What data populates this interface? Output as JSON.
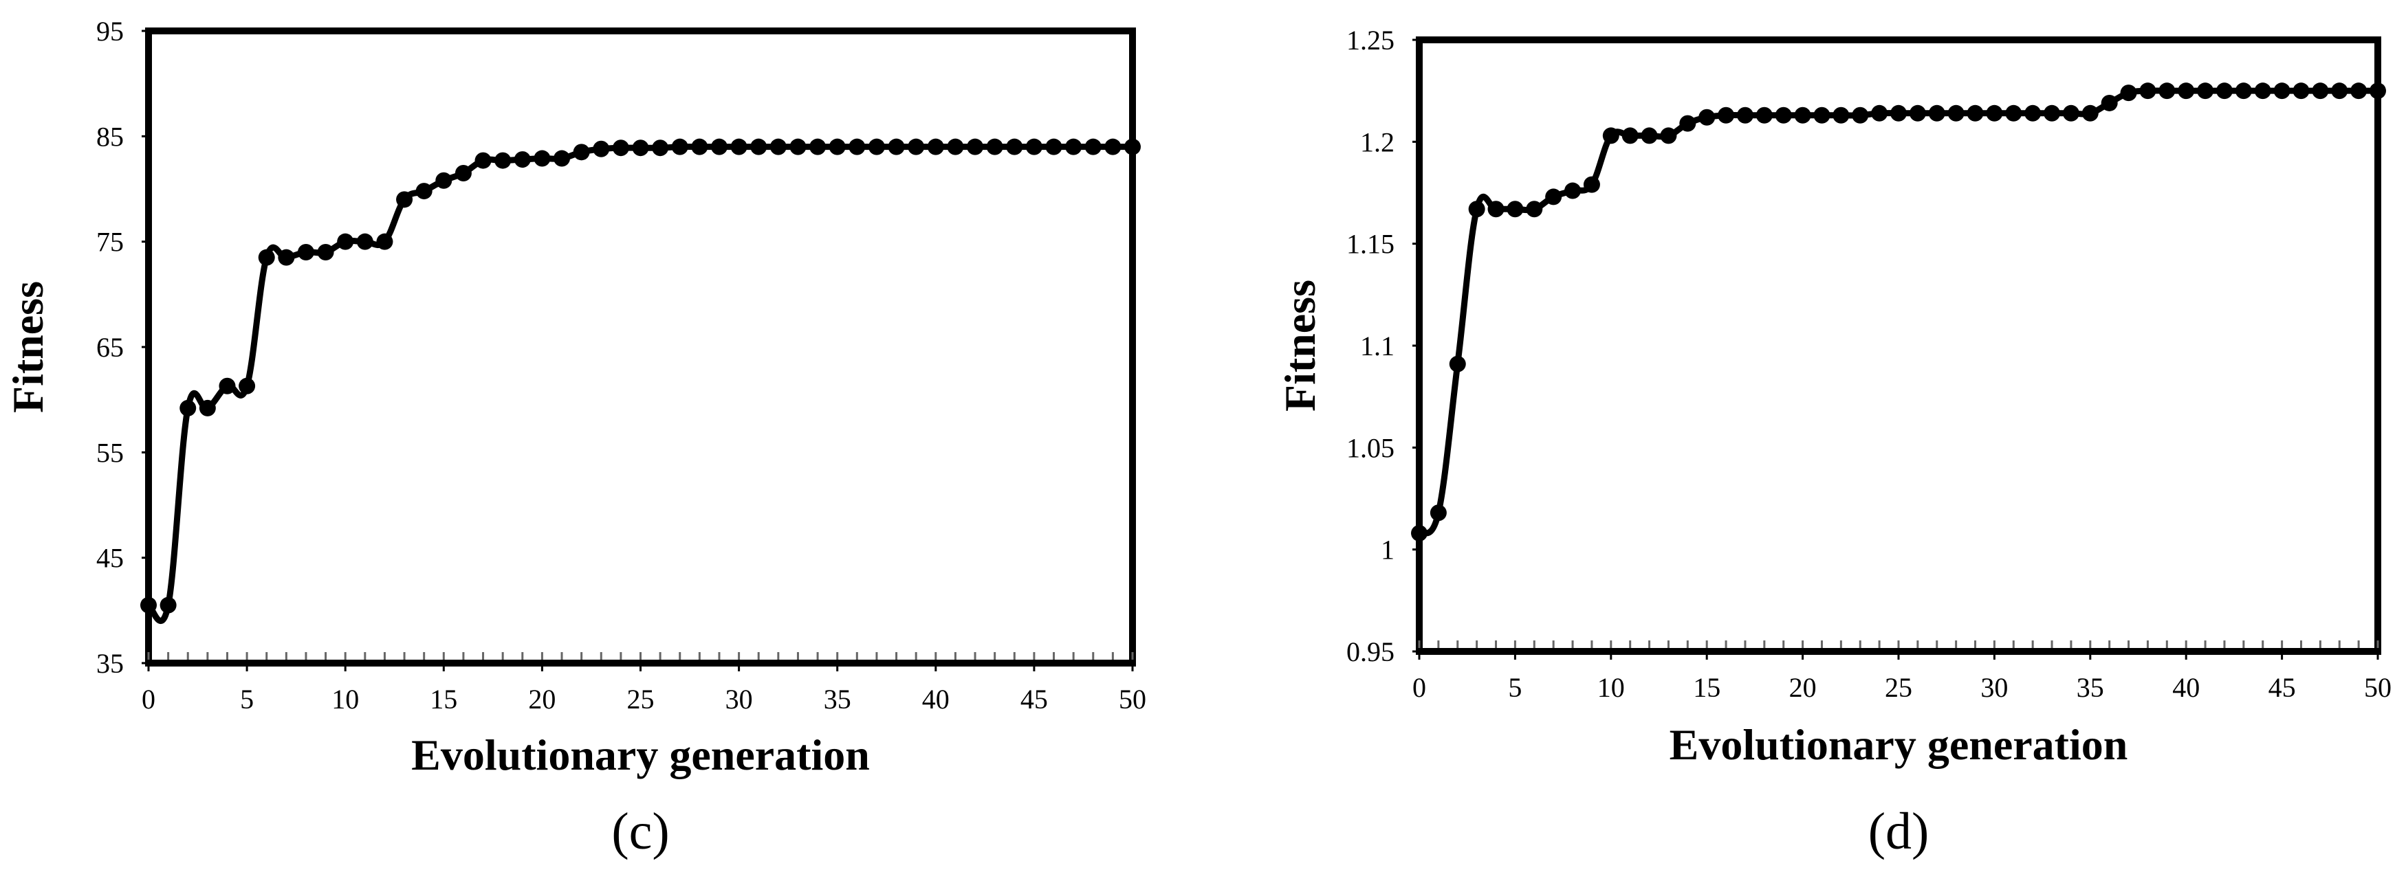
{
  "chart_data": [
    {
      "type": "line",
      "panel_label": "(c)",
      "xlabel": "Evolutionary generation",
      "ylabel": "Fitness",
      "xlim": [
        0,
        50
      ],
      "ylim": [
        35,
        95
      ],
      "xticks": [
        0,
        5,
        10,
        15,
        20,
        25,
        30,
        35,
        40,
        45,
        50
      ],
      "yticks": [
        35,
        45,
        55,
        65,
        75,
        85,
        95
      ],
      "xtick_labels": [
        "0",
        "5",
        "10",
        "15",
        "20",
        "25",
        "30",
        "35",
        "40",
        "45",
        "50"
      ],
      "ytick_labels": [
        "35",
        "45",
        "55",
        "65",
        "75",
        "85",
        "95"
      ],
      "grid": false,
      "legend": "none",
      "markers": "filled-circle",
      "series": [
        {
          "x": [
            0,
            1,
            2,
            3,
            4,
            5,
            6,
            7,
            8,
            9,
            10,
            11,
            12,
            13,
            14,
            15,
            16,
            17,
            18,
            19,
            20,
            21,
            22,
            23,
            24,
            25,
            26,
            27,
            28,
            29,
            30,
            31,
            32,
            33,
            34,
            35,
            36,
            37,
            38,
            39,
            40,
            41,
            42,
            43,
            44,
            45,
            46,
            47,
            48,
            49,
            50
          ],
          "values": [
            40.5,
            40.5,
            59.2,
            59.2,
            61.3,
            61.3,
            73.5,
            73.5,
            74,
            74,
            75,
            75,
            75,
            79,
            79.8,
            80.8,
            81.5,
            82.7,
            82.7,
            82.8,
            82.9,
            82.9,
            83.5,
            83.8,
            83.9,
            83.9,
            83.9,
            84,
            84,
            84,
            84,
            84,
            84,
            84,
            84,
            84,
            84,
            84,
            84,
            84,
            84,
            84,
            84,
            84,
            84,
            84,
            84,
            84,
            84,
            84,
            84
          ]
        }
      ]
    },
    {
      "type": "line",
      "panel_label": "(d)",
      "xlabel": "Evolutionary generation",
      "ylabel": "Fitness",
      "xlim": [
        0,
        50
      ],
      "ylim": [
        0.95,
        1.25
      ],
      "xticks": [
        0,
        5,
        10,
        15,
        20,
        25,
        30,
        35,
        40,
        45,
        50
      ],
      "yticks": [
        0.95,
        1.0,
        1.05,
        1.1,
        1.15,
        1.2,
        1.25
      ],
      "xtick_labels": [
        "0",
        "5",
        "10",
        "15",
        "20",
        "25",
        "30",
        "35",
        "40",
        "45",
        "50"
      ],
      "ytick_labels": [
        "0.95",
        "1",
        "1.05",
        "1.1",
        "1.15",
        "1.2",
        "1.25"
      ],
      "grid": false,
      "legend": "none",
      "markers": "filled-circle",
      "series": [
        {
          "x": [
            0,
            1,
            2,
            3,
            4,
            5,
            6,
            7,
            8,
            9,
            10,
            11,
            12,
            13,
            14,
            15,
            16,
            17,
            18,
            19,
            20,
            21,
            22,
            23,
            24,
            25,
            26,
            27,
            28,
            29,
            30,
            31,
            32,
            33,
            34,
            35,
            36,
            37,
            38,
            39,
            40,
            41,
            42,
            43,
            44,
            45,
            46,
            47,
            48,
            49,
            50
          ],
          "values": [
            1.008,
            1.018,
            1.091,
            1.167,
            1.167,
            1.167,
            1.167,
            1.173,
            1.176,
            1.179,
            1.203,
            1.203,
            1.203,
            1.203,
            1.209,
            1.212,
            1.213,
            1.213,
            1.213,
            1.213,
            1.213,
            1.213,
            1.213,
            1.213,
            1.214,
            1.214,
            1.214,
            1.214,
            1.214,
            1.214,
            1.214,
            1.214,
            1.214,
            1.214,
            1.214,
            1.214,
            1.219,
            1.224,
            1.225,
            1.225,
            1.225,
            1.225,
            1.225,
            1.225,
            1.225,
            1.225,
            1.225,
            1.225,
            1.225,
            1.225,
            1.225
          ]
        }
      ]
    }
  ]
}
